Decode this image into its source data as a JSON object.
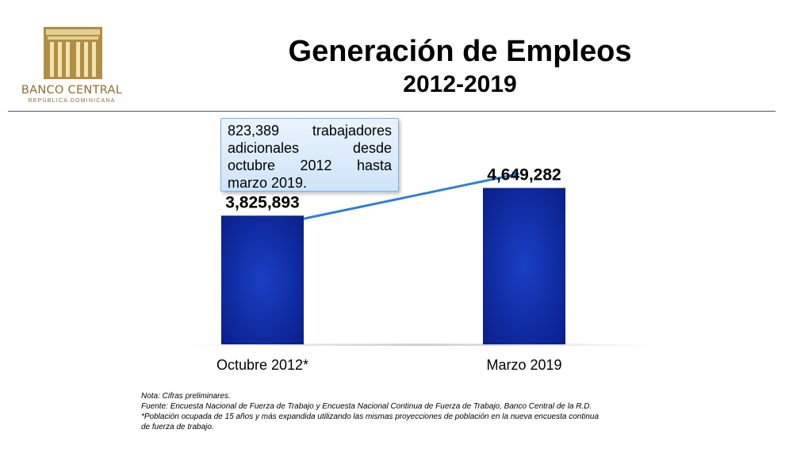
{
  "header": {
    "logo_name": "BANCO CENTRAL",
    "logo_sub": "REPÚBLICA DOMINICANA",
    "title": "Generación de Empleos",
    "subtitle": "2012-2019"
  },
  "callout": {
    "text": "823,389 trabajadores adicionales desde octubre 2012 hasta marzo 2019."
  },
  "chart_data": {
    "type": "bar",
    "categories": [
      "Octubre 2012*",
      "Marzo 2019"
    ],
    "values": [
      3825893,
      4649282
    ],
    "value_labels": [
      "3,825,893",
      "4,649,282"
    ],
    "title": "Generación de Empleos",
    "subtitle": "2012-2019",
    "xlabel": "",
    "ylabel": "",
    "ylim": [
      0,
      6000000
    ],
    "grid": false,
    "bar_color": "#0a2aa8"
  },
  "notes": [
    "Nota: Cifras preliminares.",
    "Fuente: Encuesta Nacional de Fuerza de Trabajo y Encuesta Nacional Continua de Fuerza de Trabajo, Banco Central de la R.D.",
    "*Población ocupada de 15 años y más expandida utilizando las mismas proyecciones de población en la nueva encuesta continua",
    "de fuerza de trabajo."
  ]
}
